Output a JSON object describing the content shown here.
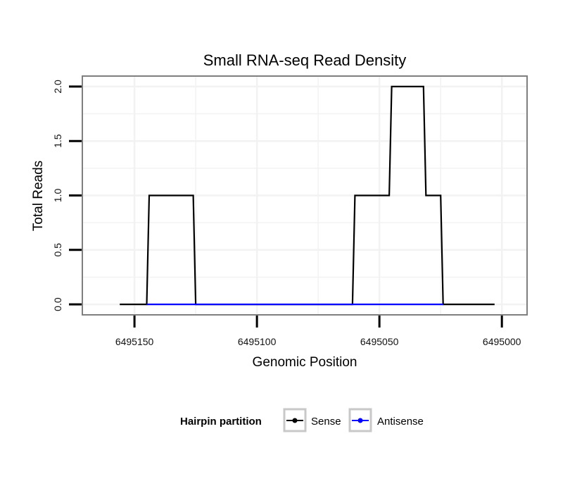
{
  "chart_data": {
    "type": "line",
    "title": "Small RNA-seq Read Density",
    "xlabel": "Genomic Position",
    "ylabel": "Total Reads",
    "xlim": [
      6495171,
      6494990
    ],
    "x_reversed": true,
    "ylim": [
      -0.09,
      2.09
    ],
    "x_ticks": [
      6495150,
      6495100,
      6495050,
      6495000
    ],
    "x_tick_labels": [
      "6495150",
      "6495100",
      "6495050",
      "6495000"
    ],
    "y_ticks": [
      0,
      0.5,
      1,
      1.5,
      2
    ],
    "y_tick_labels": [
      "0.0",
      "0.5",
      "1.0",
      "1.5",
      "2.0"
    ],
    "grid": true,
    "legend": {
      "title": "Hairpin partition",
      "position": "bottom",
      "entries": [
        "Sense",
        "Antisense"
      ]
    },
    "series": [
      {
        "name": "Sense",
        "color": "#000000",
        "x": [
          6495156,
          6495145,
          6495144,
          6495126,
          6495125,
          6495061,
          6495060,
          6495046,
          6495045,
          6495032,
          6495031,
          6495025,
          6495024,
          6495003
        ],
        "values": [
          0,
          0,
          1,
          1,
          0,
          0,
          1,
          1,
          2,
          2,
          1,
          1,
          0,
          0
        ]
      },
      {
        "name": "Antisense",
        "color": "#0000ff",
        "x": [
          6495145,
          6495125,
          6495061,
          6495024
        ],
        "values": [
          0,
          0,
          0,
          0
        ]
      }
    ]
  }
}
